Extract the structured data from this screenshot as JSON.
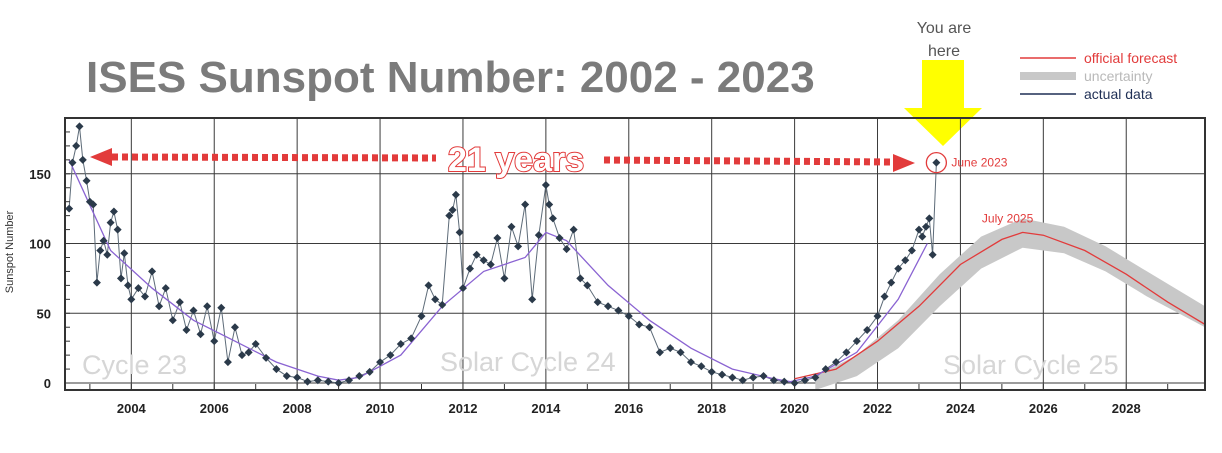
{
  "title": "ISES Sunspot Number: 2002 - 2023",
  "you_are_here": [
    "You are",
    "here"
  ],
  "span_label": "21 years",
  "colors": {
    "forecast": "#e23b3b",
    "uncertainty": "#c8c8c8",
    "actual": "#2b3a4a",
    "smoothed": "#8a63d2",
    "arrow": "#ffff00",
    "annotation": "#e23b3b"
  },
  "legend": [
    {
      "label": "official forecast",
      "color": "#e23b3b"
    },
    {
      "label": "uncertainty",
      "color": "#b9b9b9"
    },
    {
      "label": "actual data",
      "color": "#1f2f55"
    }
  ],
  "cycle_labels": [
    "Cycle 23",
    "Solar Cycle 24",
    "Solar Cycle 25"
  ],
  "annotations": {
    "current": "June 2023",
    "peak": "July 2025"
  },
  "chart_data": {
    "type": "line",
    "title": "ISES Sunspot Number: 2002 - 2023",
    "xlabel": "",
    "ylabel": "Sunspot Number",
    "xlim": [
      2002.4,
      2029.9
    ],
    "ylim": [
      -5,
      190
    ],
    "x_ticks": [
      2004,
      2006,
      2008,
      2010,
      2012,
      2014,
      2016,
      2018,
      2020,
      2022,
      2024,
      2026,
      2028
    ],
    "x_tick_labels": [
      "2004",
      "2006",
      "2008",
      "2010",
      "2012",
      "2014",
      "2016",
      "2018",
      "2020",
      "2022",
      "2024",
      "2026",
      "2028"
    ],
    "y_ticks": [
      0,
      50,
      100,
      150
    ],
    "y_tick_labels": [
      "0",
      "50",
      "100",
      "150"
    ],
    "grid": true,
    "series": [
      {
        "name": "actual data",
        "x": [
          2002.5,
          2002.58,
          2002.67,
          2002.75,
          2002.83,
          2002.92,
          2003.0,
          2003.08,
          2003.17,
          2003.25,
          2003.33,
          2003.42,
          2003.5,
          2003.58,
          2003.67,
          2003.75,
          2003.83,
          2003.92,
          2004.0,
          2004.17,
          2004.33,
          2004.5,
          2004.67,
          2004.83,
          2005.0,
          2005.17,
          2005.33,
          2005.5,
          2005.67,
          2005.83,
          2006.0,
          2006.17,
          2006.33,
          2006.5,
          2006.67,
          2006.83,
          2007.0,
          2007.25,
          2007.5,
          2007.75,
          2008.0,
          2008.25,
          2008.5,
          2008.75,
          2009.0,
          2009.25,
          2009.5,
          2009.75,
          2010.0,
          2010.25,
          2010.5,
          2010.75,
          2011.0,
          2011.17,
          2011.33,
          2011.5,
          2011.67,
          2011.75,
          2011.83,
          2011.92,
          2012.0,
          2012.17,
          2012.33,
          2012.5,
          2012.67,
          2012.83,
          2013.0,
          2013.17,
          2013.33,
          2013.5,
          2013.67,
          2013.83,
          2014.0,
          2014.08,
          2014.17,
          2014.33,
          2014.5,
          2014.67,
          2014.83,
          2015.0,
          2015.25,
          2015.5,
          2015.75,
          2016.0,
          2016.25,
          2016.5,
          2016.75,
          2017.0,
          2017.25,
          2017.5,
          2017.75,
          2018.0,
          2018.25,
          2018.5,
          2018.75,
          2019.0,
          2019.25,
          2019.5,
          2019.75,
          2020.0,
          2020.25,
          2020.5,
          2020.75,
          2021.0,
          2021.25,
          2021.5,
          2021.75,
          2022.0,
          2022.17,
          2022.33,
          2022.5,
          2022.67,
          2022.83,
          2023.0,
          2023.08,
          2023.17,
          2023.25,
          2023.33,
          2023.42
        ],
        "y": [
          125,
          158,
          170,
          184,
          160,
          145,
          130,
          128,
          72,
          95,
          102,
          92,
          115,
          123,
          110,
          75,
          93,
          70,
          60,
          68,
          62,
          80,
          55,
          68,
          45,
          58,
          38,
          52,
          35,
          55,
          30,
          54,
          15,
          40,
          20,
          22,
          28,
          18,
          10,
          5,
          4,
          1,
          2,
          1,
          0,
          2,
          5,
          8,
          15,
          20,
          28,
          32,
          48,
          70,
          60,
          56,
          120,
          124,
          135,
          108,
          68,
          82,
          92,
          88,
          85,
          104,
          75,
          112,
          98,
          128,
          60,
          106,
          142,
          128,
          118,
          104,
          96,
          110,
          75,
          70,
          58,
          55,
          52,
          48,
          42,
          40,
          22,
          25,
          22,
          15,
          12,
          8,
          6,
          4,
          2,
          4,
          5,
          2,
          1,
          0,
          2,
          4,
          10,
          15,
          22,
          30,
          38,
          48,
          62,
          72,
          82,
          88,
          95,
          110,
          105,
          112,
          118,
          92,
          158
        ]
      },
      {
        "name": "smoothed",
        "x": [
          2002.5,
          2003.5,
          2004.5,
          2005.5,
          2006.5,
          2007.5,
          2008.5,
          2009.0,
          2009.5,
          2010.5,
          2011.5,
          2012.5,
          2013.5,
          2014.0,
          2014.5,
          2015.5,
          2016.5,
          2017.5,
          2018.5,
          2019.5,
          2019.9,
          2020.5,
          2021.5,
          2022.5,
          2023.2
        ],
        "y": [
          160,
          95,
          68,
          45,
          30,
          15,
          5,
          2,
          4,
          20,
          55,
          80,
          90,
          108,
          102,
          70,
          45,
          25,
          10,
          3,
          1,
          5,
          22,
          60,
          100
        ]
      },
      {
        "name": "official forecast",
        "x": [
          2020.0,
          2021.0,
          2022.0,
          2023.0,
          2024.0,
          2025.0,
          2025.5,
          2026.0,
          2027.0,
          2028.0,
          2029.0,
          2029.9
        ],
        "y": [
          3,
          10,
          30,
          55,
          85,
          103,
          108,
          106,
          95,
          78,
          58,
          42
        ]
      },
      {
        "name": "uncertainty",
        "x": [
          2020.5,
          2021.5,
          2022.5,
          2023.5,
          2024.5,
          2025.5,
          2026.5,
          2027.5,
          2028.5,
          2029.9
        ],
        "lower": [
          -5,
          5,
          25,
          55,
          82,
          97,
          93,
          80,
          62,
          40
        ],
        "upper": [
          5,
          20,
          45,
          78,
          105,
          118,
          112,
          98,
          80,
          55
        ]
      }
    ],
    "annotations": [
      {
        "text": "June 2023",
        "x": 2023.42,
        "y": 158
      },
      {
        "text": "July 2025",
        "x": 2025.5,
        "y": 108
      }
    ]
  }
}
